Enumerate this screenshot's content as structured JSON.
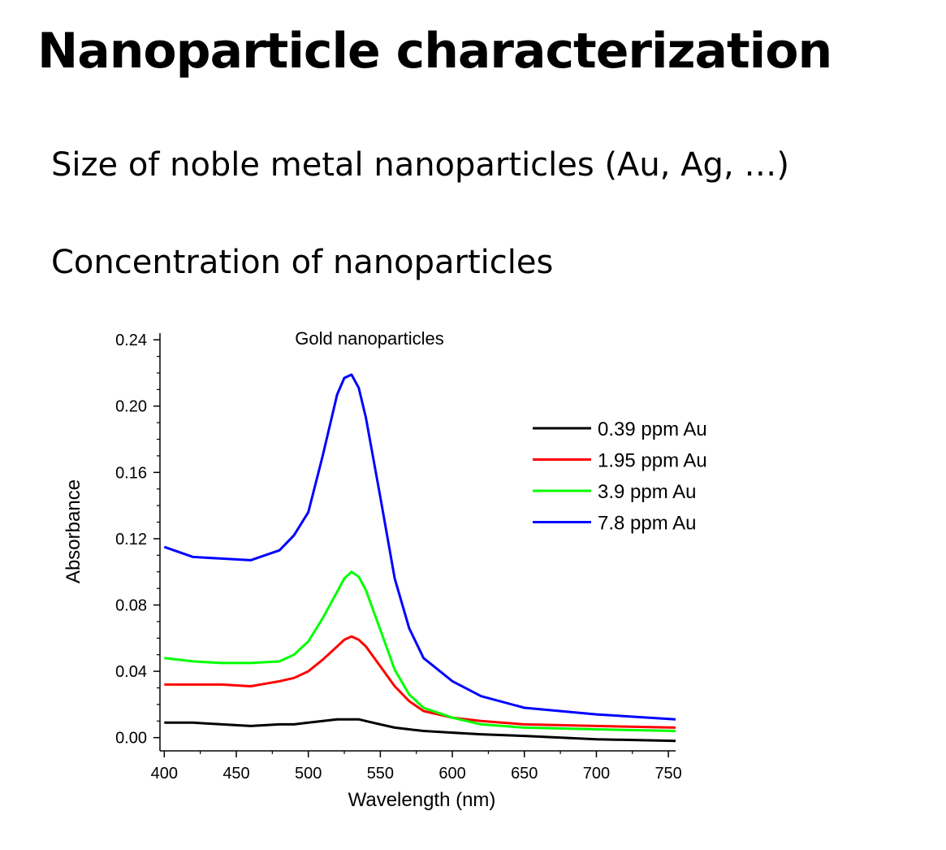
{
  "slide": {
    "title": "Nanoparticle characterization",
    "bullets": [
      "Size of noble metal nanoparticles (Au, Ag, …)",
      "Concentration of nanoparticles"
    ]
  },
  "chart_data": {
    "type": "line",
    "title": "Gold nanoparticles",
    "xlabel": "Wavelength (nm)",
    "ylabel": "Absorbance",
    "xlim": [
      397,
      755
    ],
    "ylim": [
      -0.008,
      0.244
    ],
    "x_ticks": [
      400,
      450,
      500,
      550,
      600,
      650,
      700,
      750
    ],
    "y_ticks": [
      "0.00",
      "0.04",
      "0.08",
      "0.12",
      "0.16",
      "0.20",
      "0.24"
    ],
    "grid": false,
    "legend_position": "top-right",
    "x": [
      400,
      420,
      440,
      460,
      480,
      490,
      500,
      510,
      520,
      525,
      530,
      535,
      540,
      550,
      560,
      570,
      580,
      600,
      620,
      650,
      700,
      755
    ],
    "series": [
      {
        "name": "0.39 ppm Au",
        "color": "#000000",
        "values": [
          0.009,
          0.009,
          0.008,
          0.007,
          0.008,
          0.008,
          0.009,
          0.01,
          0.011,
          0.011,
          0.011,
          0.011,
          0.01,
          0.008,
          0.006,
          0.005,
          0.004,
          0.003,
          0.002,
          0.001,
          -0.001,
          -0.002
        ]
      },
      {
        "name": "1.95 ppm Au",
        "color": "#ff0000",
        "values": [
          0.032,
          0.032,
          0.032,
          0.031,
          0.034,
          0.036,
          0.04,
          0.047,
          0.055,
          0.059,
          0.061,
          0.059,
          0.055,
          0.043,
          0.031,
          0.022,
          0.016,
          0.012,
          0.01,
          0.008,
          0.007,
          0.006
        ]
      },
      {
        "name": "3.9 ppm Au",
        "color": "#00ff00",
        "values": [
          0.048,
          0.046,
          0.045,
          0.045,
          0.046,
          0.05,
          0.058,
          0.072,
          0.088,
          0.096,
          0.1,
          0.097,
          0.089,
          0.065,
          0.041,
          0.026,
          0.018,
          0.012,
          0.008,
          0.006,
          0.005,
          0.004
        ]
      },
      {
        "name": "7.8 ppm Au",
        "color": "#0000ff",
        "values": [
          0.115,
          0.109,
          0.108,
          0.107,
          0.113,
          0.122,
          0.136,
          0.17,
          0.207,
          0.217,
          0.219,
          0.211,
          0.193,
          0.145,
          0.096,
          0.066,
          0.048,
          0.034,
          0.025,
          0.018,
          0.014,
          0.011
        ]
      }
    ]
  }
}
